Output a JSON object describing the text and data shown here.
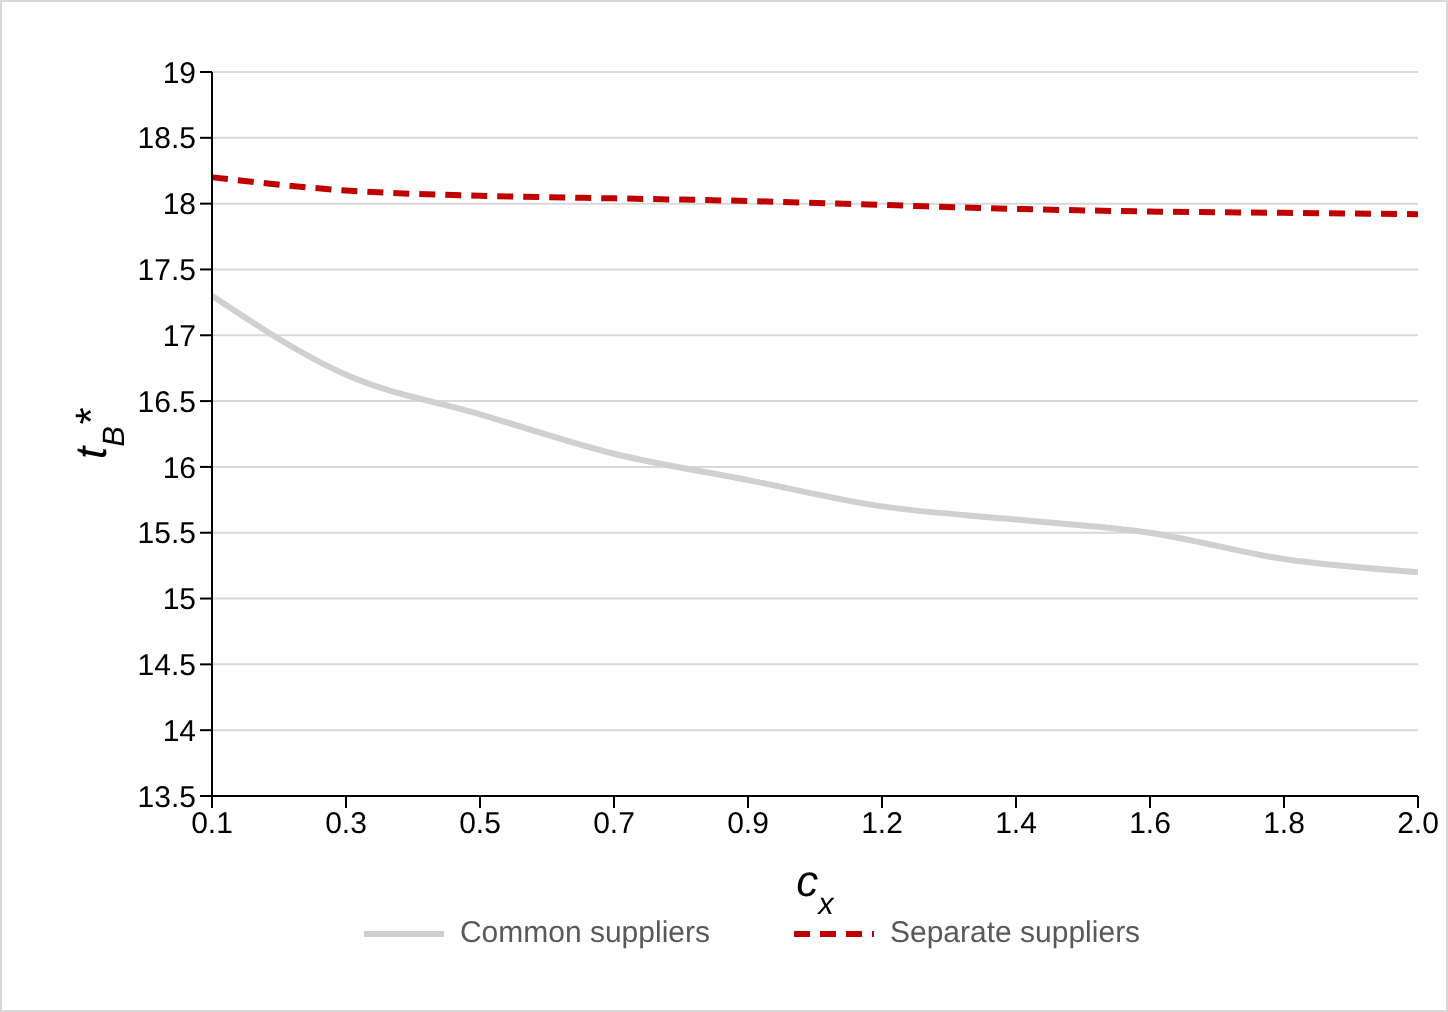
{
  "chart_data": {
    "type": "line",
    "xlabel": "c$_{x}$",
    "ylabel": "t$_{B}$*",
    "categories": [
      "0.1",
      "0.3",
      "0.5",
      "0.7",
      "0.9",
      "1.2",
      "1.4",
      "1.6",
      "1.8",
      "2.0"
    ],
    "series": [
      {
        "name": "Common suppliers",
        "color": "#d0d0d0",
        "line_style": "solid",
        "values": [
          17.3,
          16.7,
          16.4,
          16.1,
          15.9,
          15.7,
          15.6,
          15.5,
          15.3,
          15.2
        ]
      },
      {
        "name": "Separate suppliers",
        "color": "#c00000",
        "line_style": "dashed",
        "values": [
          18.2,
          18.1,
          18.06,
          18.04,
          18.02,
          17.99,
          17.96,
          17.94,
          17.93,
          17.92
        ]
      }
    ],
    "ylim": [
      13.5,
      19
    ],
    "yticks": [
      13.5,
      14,
      14.5,
      15,
      15.5,
      16,
      16.5,
      17,
      17.5,
      18,
      18.5,
      19
    ],
    "grid": "y",
    "legend": "bottom",
    "marker": "none"
  }
}
